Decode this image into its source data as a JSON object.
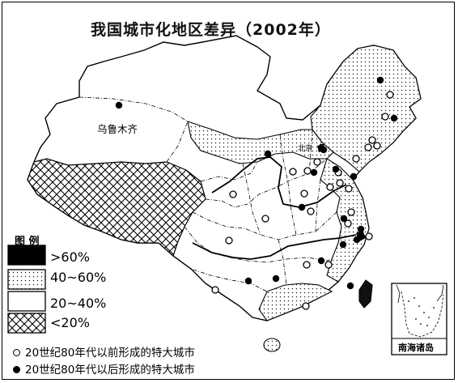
{
  "map": {
    "title": "我国城市化地区差异（2002年）",
    "city_labels": {
      "urumqi": "乌鲁木齐",
      "beijing": "北京"
    },
    "legend": {
      "title": "图 例",
      "items": [
        {
          "label": ">60%",
          "pattern": "solid-black"
        },
        {
          "label": "40~60%",
          "pattern": "dotted"
        },
        {
          "label": "20~40%",
          "pattern": "blank"
        },
        {
          "label": "<20%",
          "pattern": "crosshatch"
        }
      ],
      "city_symbols": [
        {
          "symbol": "open-circle",
          "label": "20世纪80年代以前形成的特大城市"
        },
        {
          "symbol": "filled-circle",
          "label": "20世纪80年代以后形成的特大城市"
        }
      ]
    },
    "inset": {
      "label": "南海诸岛"
    }
  }
}
